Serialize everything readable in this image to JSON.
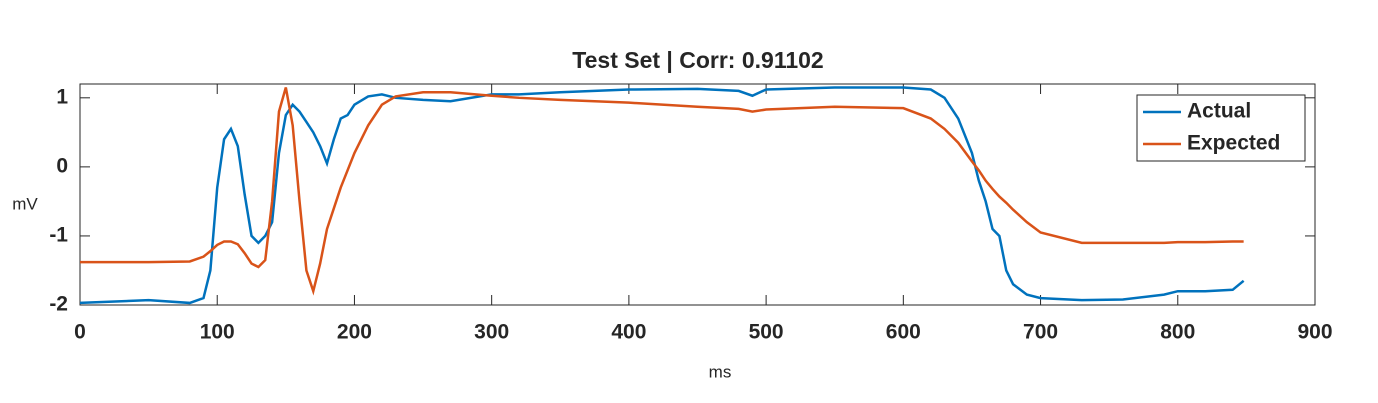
{
  "chart_data": {
    "type": "line",
    "title": "Test Set | Corr: 0.91102",
    "x_label": "ms",
    "y_label": "mV",
    "x": [
      0,
      50,
      80,
      90,
      95,
      100,
      105,
      110,
      115,
      120,
      125,
      130,
      135,
      140,
      145,
      150,
      155,
      160,
      165,
      170,
      175,
      180,
      185,
      190,
      195,
      200,
      210,
      220,
      230,
      250,
      270,
      300,
      320,
      350,
      400,
      450,
      480,
      490,
      500,
      550,
      600,
      620,
      630,
      640,
      650,
      655,
      660,
      665,
      670,
      675,
      680,
      690,
      700,
      730,
      760,
      790,
      800,
      820,
      840,
      848
    ],
    "series": [
      {
        "name": "Actual",
        "color": "#0072bd",
        "values": [
          -1.97,
          -1.93,
          -1.97,
          -1.9,
          -1.5,
          -0.3,
          0.4,
          0.55,
          0.3,
          -0.4,
          -1.0,
          -1.1,
          -1.0,
          -0.8,
          0.2,
          0.75,
          0.9,
          0.8,
          0.65,
          0.5,
          0.3,
          0.05,
          0.4,
          0.7,
          0.75,
          0.9,
          1.02,
          1.05,
          1.0,
          0.97,
          0.95,
          1.05,
          1.05,
          1.08,
          1.12,
          1.13,
          1.1,
          1.03,
          1.12,
          1.15,
          1.15,
          1.12,
          1.0,
          0.7,
          0.2,
          -0.2,
          -0.5,
          -0.9,
          -1.0,
          -1.5,
          -1.7,
          -1.85,
          -1.9,
          -1.93,
          -1.92,
          -1.85,
          -1.8,
          -1.8,
          -1.78,
          -1.65
        ]
      },
      {
        "name": "Expected",
        "color": "#d95319",
        "values": [
          -1.38,
          -1.38,
          -1.37,
          -1.3,
          -1.22,
          -1.13,
          -1.08,
          -1.08,
          -1.12,
          -1.25,
          -1.4,
          -1.45,
          -1.35,
          -0.5,
          0.8,
          1.15,
          0.6,
          -0.5,
          -1.5,
          -1.8,
          -1.4,
          -0.9,
          -0.6,
          -0.3,
          -0.05,
          0.2,
          0.6,
          0.9,
          1.02,
          1.08,
          1.08,
          1.03,
          1.0,
          0.97,
          0.93,
          0.87,
          0.84,
          0.8,
          0.83,
          0.87,
          0.85,
          0.7,
          0.55,
          0.35,
          0.08,
          -0.05,
          -0.2,
          -0.32,
          -0.43,
          -0.52,
          -0.62,
          -0.8,
          -0.95,
          -1.1,
          -1.1,
          -1.1,
          -1.09,
          -1.09,
          -1.08,
          -1.08
        ]
      }
    ],
    "xlim": [
      0,
      900
    ],
    "xticks": [
      0,
      100,
      200,
      300,
      400,
      500,
      600,
      700,
      800,
      900
    ],
    "ylim": [
      -2,
      1.2
    ],
    "yticks": [
      -2,
      -1,
      0,
      1
    ],
    "grid": false,
    "legend": "northeast"
  }
}
